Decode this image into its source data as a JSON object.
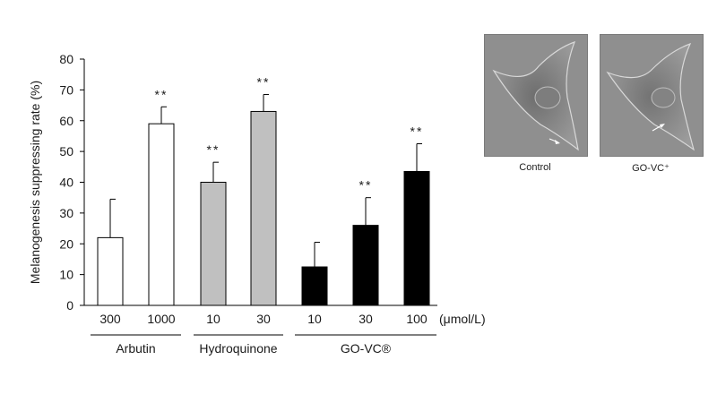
{
  "chart_data": {
    "type": "bar",
    "ylabel": "Melanogenesis suppressing rate (%)",
    "ylim": [
      0,
      80
    ],
    "yticks": [
      0,
      10,
      20,
      30,
      40,
      50,
      60,
      70,
      80
    ],
    "unit_label": "(μmol/L)",
    "categories": [
      "300",
      "1000",
      "10",
      "30",
      "10",
      "30",
      "100"
    ],
    "values": [
      22,
      59,
      40,
      63,
      12.5,
      26,
      43.5
    ],
    "errors": [
      12.5,
      5.5,
      6.5,
      5.5,
      8,
      9,
      9
    ],
    "significance": [
      "",
      "**",
      "**",
      "**",
      "",
      "**",
      "**"
    ],
    "groups": [
      {
        "name": "Arbutin",
        "indices": [
          0,
          1
        ],
        "color": "#ffffff"
      },
      {
        "name": "Hydroquinone",
        "indices": [
          2,
          3
        ],
        "color": "#c0c0c0"
      },
      {
        "name": "GO-VC®",
        "indices": [
          4,
          5,
          6
        ],
        "color": "#000000"
      }
    ]
  },
  "images": [
    {
      "label": "Control"
    },
    {
      "label": "GO-VC⁺"
    }
  ]
}
